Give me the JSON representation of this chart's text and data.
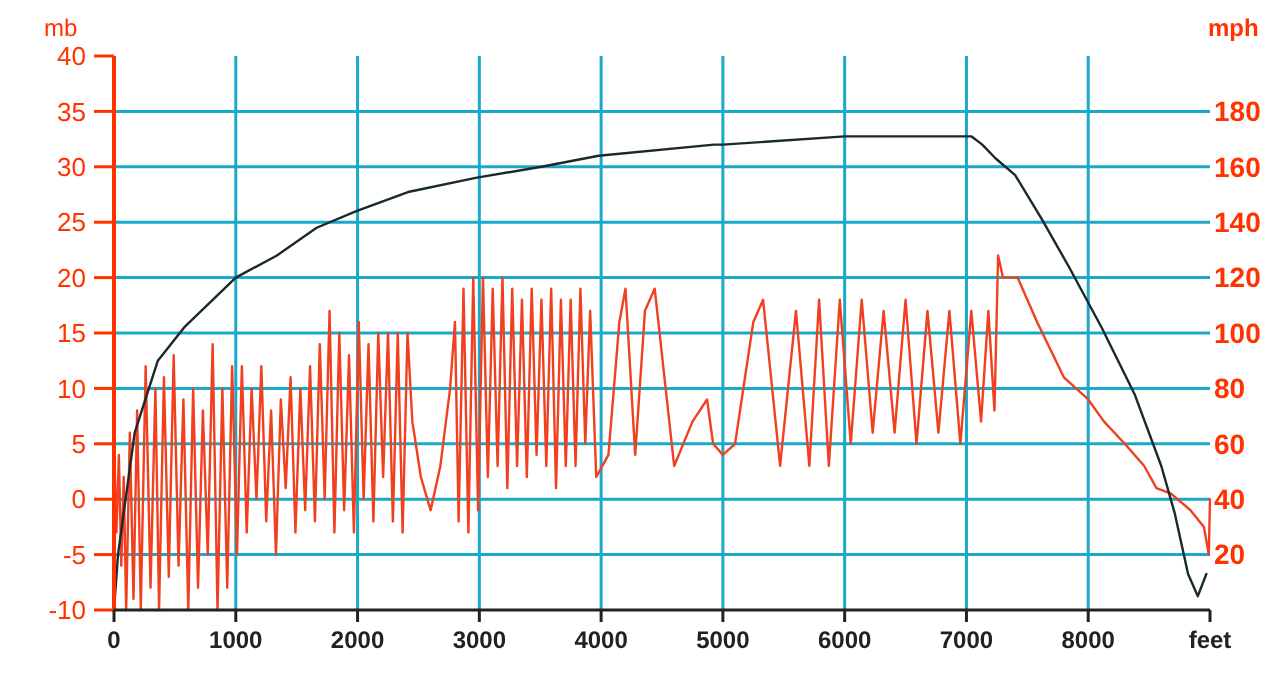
{
  "chart_data": {
    "type": "line",
    "ylabel": "mb",
    "y2label": "mph",
    "xlim": [
      0,
      9000
    ],
    "xticks": [
      0,
      1000,
      2000,
      3000,
      4000,
      5000,
      6000,
      7000,
      8000,
      {
        "value": 9000,
        "label": "feet"
      }
    ],
    "ylim": [
      -10,
      40
    ],
    "yticks": [
      -10,
      -5,
      0,
      5,
      10,
      15,
      20,
      25,
      30,
      35,
      40
    ],
    "y2lim": [
      0,
      200
    ],
    "y2ticks": [
      20,
      40,
      60,
      80,
      100,
      120,
      140,
      160,
      180
    ],
    "grid": true,
    "marker": "none",
    "line_style": "solid",
    "series": [
      {
        "color": "#f04020",
        "x": [
          0,
          20,
          40,
          60,
          80,
          100,
          130,
          160,
          190,
          220,
          260,
          300,
          340,
          370,
          410,
          450,
          490,
          530,
          570,
          610,
          650,
          690,
          730,
          770,
          810,
          850,
          890,
          930,
          970,
          1010,
          1050,
          1090,
          1130,
          1170,
          1210,
          1250,
          1290,
          1330,
          1370,
          1410,
          1450,
          1490,
          1530,
          1570,
          1610,
          1650,
          1690,
          1730,
          1770,
          1810,
          1850,
          1890,
          1930,
          1970,
          2010,
          2050,
          2090,
          2130,
          2170,
          2210,
          2250,
          2290,
          2330,
          2370,
          2410,
          2450,
          2520,
          2600,
          2680,
          2760,
          2800,
          2830,
          2870,
          2910,
          2950,
          2990,
          3030,
          3070,
          3110,
          3150,
          3190,
          3230,
          3270,
          3310,
          3350,
          3390,
          3430,
          3470,
          3510,
          3550,
          3590,
          3630,
          3670,
          3710,
          3750,
          3790,
          3830,
          3870,
          3910,
          3960,
          4060,
          4150,
          4200,
          4280,
          4360,
          4440,
          4520,
          4600,
          4750,
          4870,
          4920,
          5000,
          5100,
          5250,
          5330,
          5470,
          5600,
          5710,
          5790,
          5870,
          5960,
          6050,
          6140,
          6230,
          6320,
          6410,
          6500,
          6590,
          6680,
          6770,
          6860,
          6950,
          7040,
          7120,
          7180,
          7230,
          7260,
          7300,
          7420,
          7580,
          7800,
          8000,
          8130,
          8300,
          8460,
          8560,
          8680,
          8840,
          8950,
          8990,
          9000
        ],
        "values": [
          5,
          -3,
          4,
          -6,
          2,
          -10,
          6,
          -9,
          8,
          -10,
          12,
          -8,
          10,
          -10,
          11,
          -7,
          13,
          -6,
          9,
          -10,
          10,
          -8,
          8,
          -5,
          14,
          -10,
          10,
          -8,
          12,
          -5,
          12,
          -3,
          10,
          0,
          12,
          -2,
          8,
          -5,
          9,
          1,
          11,
          -3,
          10,
          -1,
          12,
          -2,
          14,
          0,
          17,
          -3,
          15,
          -1,
          13,
          -3,
          16,
          0,
          14,
          -2,
          15,
          2,
          15,
          -2,
          15,
          -3,
          15,
          7,
          2,
          -1,
          3,
          10,
          16,
          -2,
          19,
          -3,
          20,
          -1,
          20,
          2,
          19,
          3,
          20,
          1,
          19,
          3,
          18,
          2,
          19,
          4,
          18,
          3,
          19,
          1,
          18,
          3,
          18,
          3,
          19,
          5,
          17,
          2,
          4,
          16,
          19,
          4,
          17,
          19,
          11,
          3,
          7,
          9,
          5,
          4,
          5,
          16,
          18,
          3,
          17,
          3,
          18,
          3,
          18,
          5,
          18,
          6,
          17,
          6,
          18,
          5,
          17,
          6,
          17,
          5,
          17,
          7,
          17,
          8,
          22,
          20,
          20,
          16,
          11,
          9,
          7,
          5,
          3,
          1,
          0.5,
          -1,
          -2.5,
          -5,
          0
        ]
      },
      {
        "color": "#1a2a2a",
        "axis": "y2",
        "x": [
          0,
          33,
          170,
          360,
          576,
          1000,
          1338,
          1664,
          1990,
          2425,
          2969,
          3510,
          3980,
          4927,
          5000,
          6000,
          7040,
          7130,
          7240,
          7400,
          7620,
          7840,
          8110,
          8380,
          8600,
          8710,
          8820,
          8900,
          8970
        ],
        "values": [
          0,
          20,
          64,
          90,
          102,
          120,
          128,
          138,
          144,
          151,
          156,
          160,
          164,
          168,
          168,
          171,
          171,
          168,
          163,
          157,
          141,
          124,
          102,
          78,
          52,
          35,
          13,
          5,
          13
        ]
      }
    ]
  }
}
